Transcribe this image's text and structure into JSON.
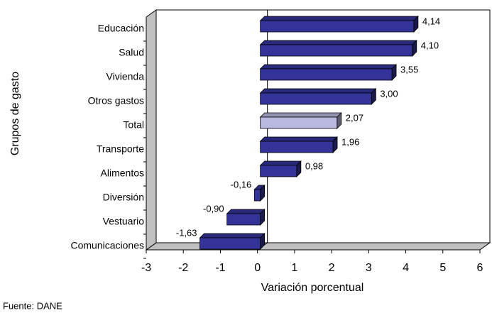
{
  "chart_data": {
    "type": "bar",
    "orientation": "horizontal",
    "x_label": "Variación porcentual",
    "y_label": "Grupos de gasto",
    "note": "Fuente: DANE",
    "categories": [
      "Educación",
      "Salud",
      "Vivienda",
      "Otros gastos",
      "Total",
      "Transporte",
      "Alimentos",
      "Diversión",
      "Vestuario",
      "Comunicaciones"
    ],
    "values": [
      4.14,
      4.1,
      3.55,
      3.0,
      2.07,
      1.96,
      0.98,
      -0.16,
      -0.9,
      -1.63
    ],
    "value_labels": [
      "4,14",
      "4,10",
      "3,55",
      "3,00",
      "2,07",
      "1,96",
      "0,98",
      "-0,16",
      "-0,90",
      "-1,63"
    ],
    "colors": [
      "#333399",
      "#333399",
      "#333399",
      "#333399",
      "#b8b8e0",
      "#333399",
      "#333399",
      "#333399",
      "#333399",
      "#333399"
    ],
    "xlim": [
      -3,
      6
    ],
    "xticks": [
      -3,
      -2,
      -1,
      0,
      1,
      2,
      3,
      4,
      5,
      6
    ],
    "grid": false
  }
}
